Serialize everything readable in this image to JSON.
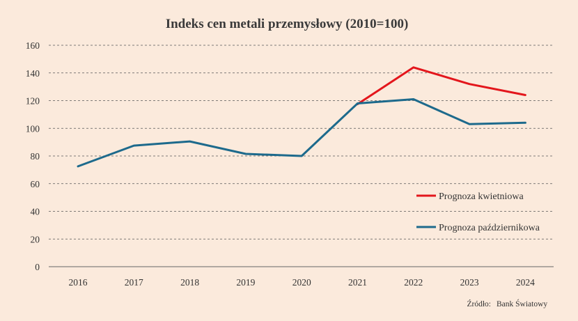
{
  "chart_data": {
    "type": "line",
    "title": "Indeks cen metali przemysłowy (2010=100)",
    "categories": [
      "2016",
      "2017",
      "2018",
      "2019",
      "2020",
      "2021",
      "2022",
      "2023",
      "2024"
    ],
    "y_ticks": [
      "0",
      "20",
      "40",
      "60",
      "80",
      "100",
      "120",
      "140",
      "160"
    ],
    "ylim": [
      0,
      160
    ],
    "grid": true,
    "legend_position": "right",
    "series": [
      {
        "name": "Prognoza kwietniowa",
        "color": "#e3161c",
        "values": [
          null,
          null,
          null,
          null,
          null,
          117.5,
          144,
          132,
          124
        ]
      },
      {
        "name": "Prognoza październikowa",
        "color": "#1d6a8c",
        "values": [
          72.5,
          87.5,
          90.5,
          81.5,
          80,
          118,
          121,
          103,
          104
        ]
      }
    ],
    "source_label": "Źródło:",
    "source_value": "Bank Światowy"
  }
}
